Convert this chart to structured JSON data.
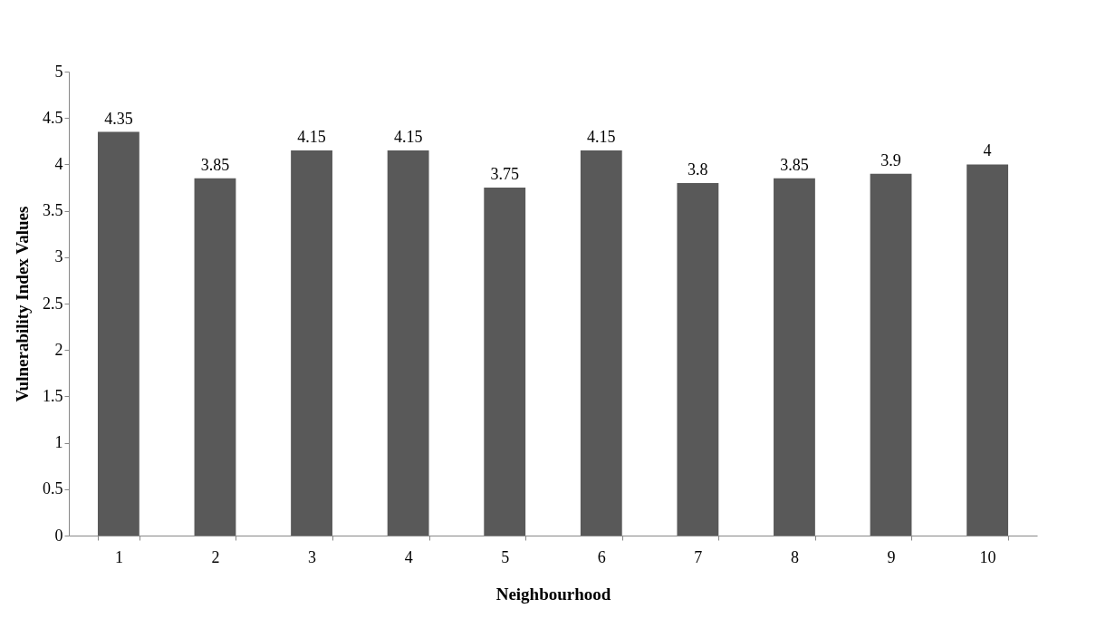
{
  "chart_data": {
    "type": "bar",
    "xlabel": "Neighbourhood",
    "ylabel": "Vulnerability Index Values",
    "categories": [
      "1",
      "2",
      "3",
      "4",
      "5",
      "6",
      "7",
      "8",
      "9",
      "10"
    ],
    "values": [
      4.35,
      3.85,
      4.15,
      4.15,
      3.75,
      4.15,
      3.8,
      3.85,
      3.9,
      4
    ],
    "color": "#595959",
    "ylim": [
      0,
      5
    ],
    "yticks": [
      0,
      0.5,
      1,
      1.5,
      2,
      2.5,
      3,
      3.5,
      4,
      4.5,
      5
    ],
    "grid": false,
    "data_labels": true
  }
}
